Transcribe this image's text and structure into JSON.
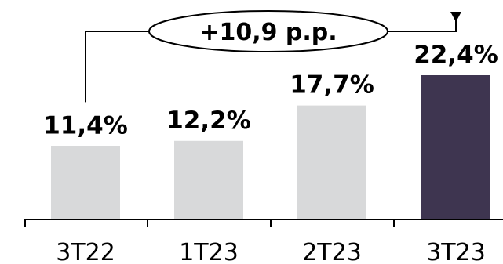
{
  "chart_data": {
    "type": "bar",
    "categories": [
      "3T22",
      "1T23",
      "2T23",
      "3T23"
    ],
    "values": [
      11.4,
      12.2,
      17.7,
      22.4
    ],
    "value_labels": [
      "11,4%",
      "12,2%",
      "17,7%",
      "22,4%"
    ],
    "ylim": [
      0,
      22.4
    ],
    "grid": false,
    "legend": "none",
    "annotation": {
      "text": "+10,9 p.p.",
      "from_category": "3T22",
      "to_category": "3T23"
    },
    "colors": {
      "default_bar": "#d8d9da",
      "highlight_bar": "#3e3550",
      "axis": "#000000",
      "text": "#000000"
    },
    "highlight_index": 3
  }
}
